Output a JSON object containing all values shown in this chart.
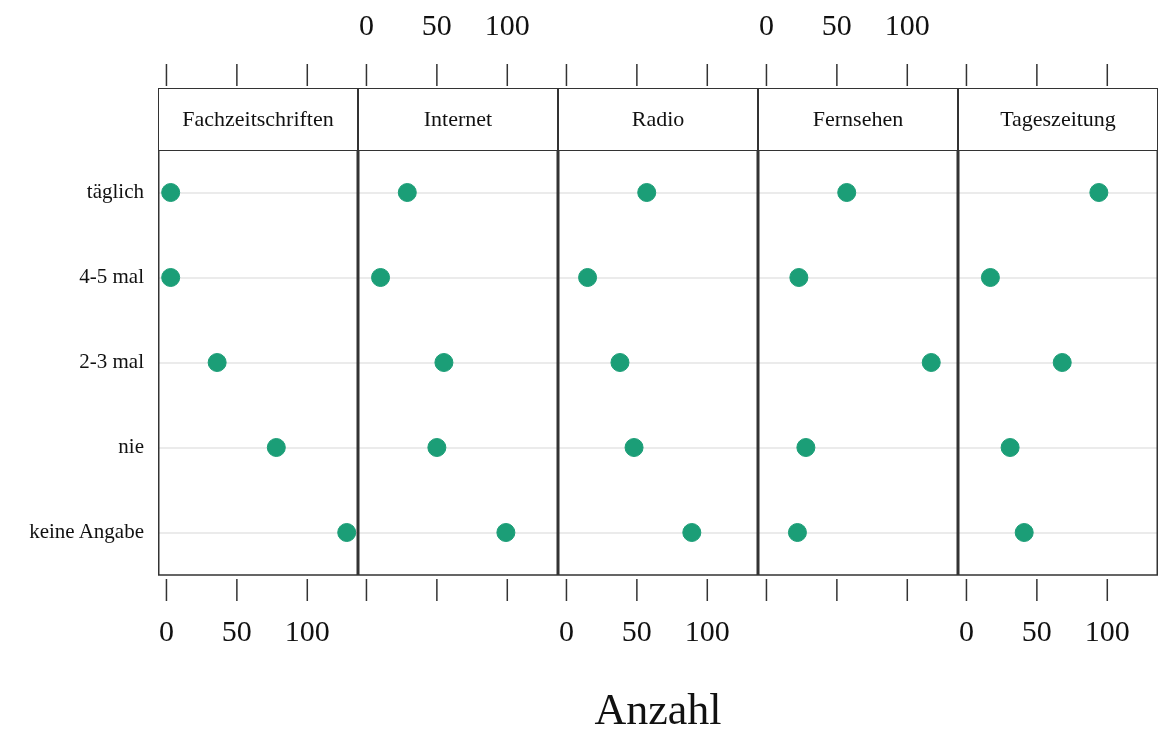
{
  "chart_data": [
    {
      "type": "scatter",
      "orientation": "horizontal",
      "title": "Fachzeitschriften",
      "categories": [
        "täglich",
        "4-5 mal",
        "2-3 mal",
        "nie",
        "keine Angabe"
      ],
      "values": [
        3,
        3,
        36,
        78,
        128
      ],
      "color": "#1b9e77",
      "marker": "circle",
      "xlim": [
        -6,
        136
      ],
      "xticks": [
        0,
        50,
        100
      ],
      "grid": "y",
      "legend": false
    },
    {
      "type": "scatter",
      "orientation": "horizontal",
      "title": "Internet",
      "series": [
        {
          "color": "#1b9e77",
          "values": [
            29,
            10,
            55,
            50,
            99
          ],
          "axis": "x2"
        }
      ],
      "marker": "circle",
      "x2lim": [
        -6,
        136
      ],
      "x2ticks": [
        0,
        50,
        100
      ],
      "grid": "y",
      "legend": false,
      "tick_labels": "x"
    },
    {
      "type": "scatter",
      "orientation": "horizontal",
      "title": "Radio",
      "xlabel": "Anzahl",
      "values": [
        57,
        15,
        38,
        48,
        89
      ],
      "color": "#1b9e77",
      "marker": "circle",
      "xlim": [
        -6,
        136
      ],
      "xticks": [
        0,
        50,
        100
      ],
      "grid": "y",
      "legend": false,
      "tick_labels": "x"
    },
    {
      "type": "scatter",
      "orientation": "horizontal",
      "title": "Fernsehen",
      "series": [
        {
          "color": "#1b9e77",
          "values": [
            57,
            23,
            117,
            28,
            22
          ],
          "axis": "x2"
        }
      ],
      "marker": "circle",
      "x2lim": [
        -6,
        136
      ],
      "x2ticks": [
        0,
        50,
        100
      ],
      "grid": "y",
      "legend": false,
      "tick_labels": "x"
    },
    {
      "type": "scatter",
      "orientation": "horizontal",
      "title": "Tageszeitung",
      "values": [
        94,
        17,
        68,
        31,
        41
      ],
      "color": "#1b9e77",
      "marker": "circle",
      "xlim": [
        -6,
        136
      ],
      "xticks": [
        0,
        50,
        100
      ],
      "grid": "y",
      "legend": false,
      "tick_labels": "x"
    }
  ]
}
